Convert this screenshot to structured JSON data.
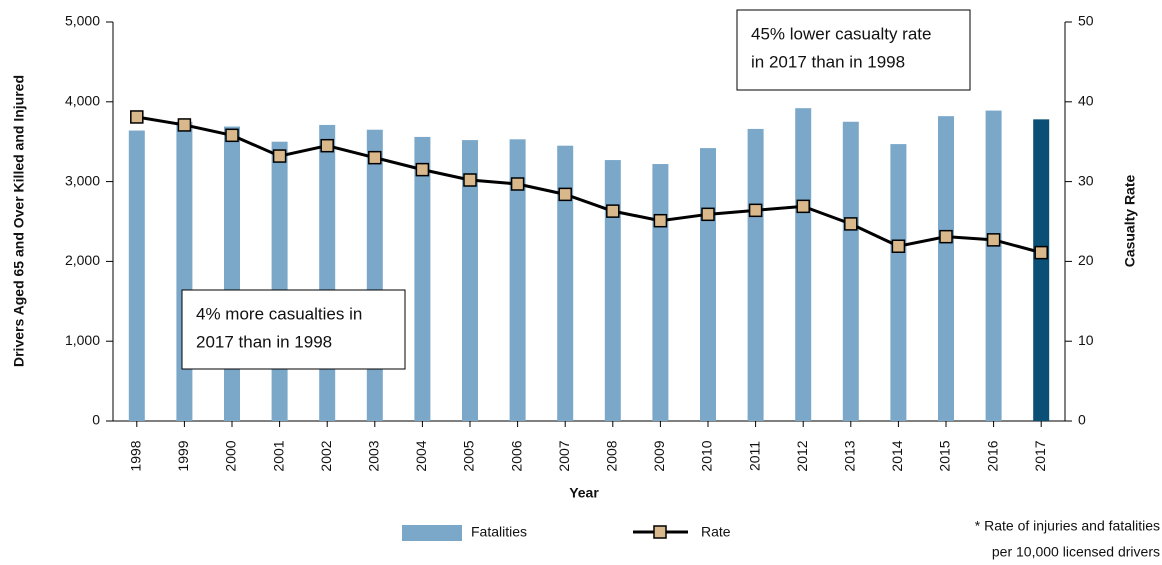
{
  "chart_data": {
    "type": "bar_line",
    "categories": [
      "1998",
      "1999",
      "2000",
      "2001",
      "2002",
      "2003",
      "2004",
      "2005",
      "2006",
      "2007",
      "2008",
      "2009",
      "2010",
      "2011",
      "2012",
      "2013",
      "2014",
      "2015",
      "2016",
      "2017"
    ],
    "series": [
      {
        "name": "Fatalities",
        "type": "bar",
        "color": "#7ba7c9",
        "colors": [
          "#7ba7c9",
          "#7ba7c9",
          "#7ba7c9",
          "#7ba7c9",
          "#7ba7c9",
          "#7ba7c9",
          "#7ba7c9",
          "#7ba7c9",
          "#7ba7c9",
          "#7ba7c9",
          "#7ba7c9",
          "#7ba7c9",
          "#7ba7c9",
          "#7ba7c9",
          "#7ba7c9",
          "#7ba7c9",
          "#7ba7c9",
          "#7ba7c9",
          "#7ba7c9",
          "#0a4f75"
        ],
        "values": [
          3640,
          3750,
          3690,
          3500,
          3710,
          3650,
          3560,
          3520,
          3530,
          3450,
          3270,
          3220,
          3420,
          3660,
          3920,
          3750,
          3470,
          3820,
          3890,
          3780
        ]
      },
      {
        "name": "Rate",
        "type": "line",
        "axis": "y2",
        "color": "#000000",
        "marker_color": "#d9b98c",
        "values": [
          38.1,
          37.1,
          35.8,
          33.2,
          34.5,
          33.0,
          31.5,
          30.2,
          29.7,
          28.4,
          26.3,
          25.1,
          25.9,
          26.4,
          26.9,
          24.7,
          21.9,
          23.1,
          22.7,
          21.1
        ]
      }
    ],
    "x_label": "Year",
    "y_label": "Drivers Aged 65 and Over Killed and Injured",
    "y2_label": "Casualty Rate",
    "ylim": [
      0,
      5000
    ],
    "yticks": [
      0,
      {
        "value": 1000,
        "label": "1,000"
      },
      {
        "value": 2000,
        "label": "2,000"
      },
      {
        "value": 3000,
        "label": "3,000"
      },
      {
        "value": 4000,
        "label": "4,000"
      },
      {
        "value": 5000,
        "label": "5,000"
      }
    ],
    "y2lim": [
      0,
      50
    ],
    "y2ticks": [
      0,
      10,
      20,
      30,
      40,
      50
    ],
    "annotations": [
      {
        "lines": [
          "4% more casualties in",
          "2017 than in 1998"
        ]
      },
      {
        "lines": [
          "45% lower casualty rate",
          "in 2017 than in 1998"
        ]
      }
    ],
    "footnote": [
      "* Rate of injuries and fatalities",
      "per 10,000 licensed drivers"
    ]
  }
}
